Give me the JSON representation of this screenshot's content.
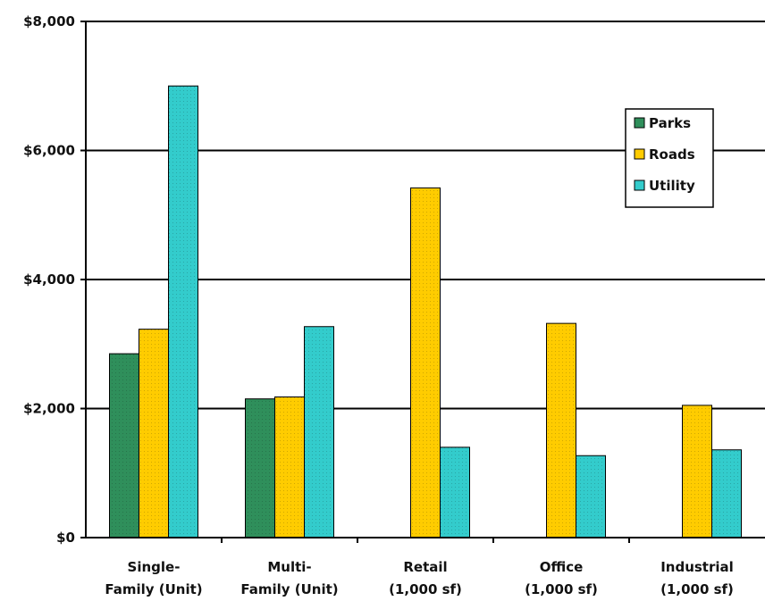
{
  "chart_data": {
    "type": "bar",
    "categories": [
      [
        "Single-",
        "Family (Unit)"
      ],
      [
        "Multi-",
        "Family (Unit)"
      ],
      [
        "Retail",
        "(1,000 sf)"
      ],
      [
        "Office",
        "(1,000 sf)"
      ],
      [
        "Industrial",
        "(1,000 sf)"
      ]
    ],
    "series": [
      {
        "name": "Parks",
        "values": [
          2850,
          2150,
          null,
          null,
          null
        ],
        "color": "#2f8f5b"
      },
      {
        "name": "Roads",
        "values": [
          3230,
          2180,
          5420,
          3320,
          2050
        ],
        "color": "#ffcc00"
      },
      {
        "name": "Utility",
        "values": [
          7000,
          3270,
          1400,
          1270,
          1360
        ],
        "color": "#33cccc"
      }
    ],
    "ylim": [
      0,
      8000
    ],
    "yticks": [
      0,
      2000,
      4000,
      6000,
      8000
    ],
    "ytick_labels": [
      "$0",
      "$2,000",
      "$4,000",
      "$6,000",
      "$8,000"
    ],
    "grid": true,
    "legend_position": "top-right"
  }
}
